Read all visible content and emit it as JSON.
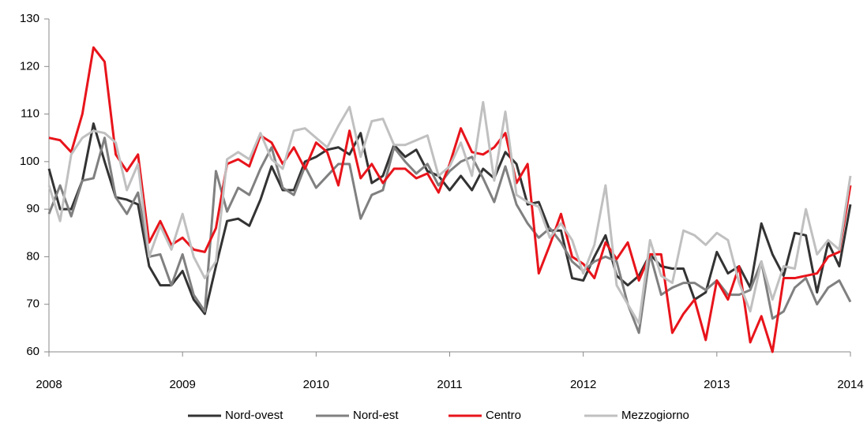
{
  "chart_data": {
    "type": "line",
    "categories": [
      "2008",
      null,
      null,
      null,
      null,
      null,
      null,
      null,
      null,
      null,
      null,
      null,
      "2009",
      null,
      null,
      null,
      null,
      null,
      null,
      null,
      null,
      null,
      null,
      null,
      "2010",
      null,
      null,
      null,
      null,
      null,
      null,
      null,
      null,
      null,
      null,
      null,
      "2011",
      null,
      null,
      null,
      null,
      null,
      null,
      null,
      null,
      null,
      null,
      null,
      "2012",
      null,
      null,
      null,
      null,
      null,
      null,
      null,
      null,
      null,
      null,
      null,
      "2013",
      null,
      null,
      null,
      null,
      null,
      null,
      null,
      null,
      null,
      null,
      null,
      "2014"
    ],
    "series": [
      {
        "name": "Nord-ovest",
        "color": "#333333",
        "values": [
          98.5,
          90,
          90,
          96,
          108,
          100,
          92.5,
          92,
          91,
          78,
          74,
          74,
          77,
          71,
          68,
          78,
          87.5,
          88,
          86.5,
          92,
          99,
          94,
          94,
          100,
          101,
          102.5,
          103,
          101.5,
          106,
          95.5,
          97,
          103.5,
          101,
          102.5,
          98,
          97,
          94,
          97,
          94,
          98.5,
          96.5,
          102,
          99.5,
          91,
          91.5,
          85.5,
          85.5,
          75.5,
          75,
          80,
          84.5,
          76,
          74,
          76,
          80.5,
          78,
          77.5,
          77.5,
          71,
          72.5,
          81,
          76.5,
          78,
          73.5,
          87,
          80.5,
          76,
          85,
          84.5,
          72.5,
          83,
          78,
          91
        ]
      },
      {
        "name": "Nord-est",
        "color": "#808080",
        "values": [
          89,
          95,
          88.5,
          96,
          96.5,
          105,
          92.5,
          89,
          93.5,
          80,
          80.5,
          74,
          80.5,
          72,
          68.5,
          98,
          89.5,
          94.5,
          93,
          98.5,
          103,
          94.5,
          93,
          99,
          94.5,
          97,
          99.5,
          99.5,
          88,
          93,
          94,
          103,
          100,
          97.5,
          99.5,
          95,
          98,
          100,
          101,
          96.5,
          91.5,
          99,
          91,
          87,
          84,
          86,
          83,
          79,
          77,
          79,
          80,
          79,
          70,
          64,
          80.5,
          72,
          73.5,
          74.5,
          74.5,
          73,
          75,
          72,
          72,
          73,
          79,
          67,
          68.5,
          73.5,
          75.5,
          70,
          73.5,
          75,
          70.5
        ]
      },
      {
        "name": "Centro",
        "color": "#e8141b",
        "values": [
          105,
          104.5,
          102,
          110,
          124,
          121,
          101.5,
          98,
          101.5,
          83,
          87.5,
          82.5,
          84,
          81.5,
          81,
          86,
          99.5,
          100.5,
          99,
          105.5,
          104,
          99.5,
          103,
          98.5,
          104,
          102,
          95,
          106.5,
          96.5,
          99.5,
          95.5,
          98.5,
          98.5,
          96.5,
          97.5,
          93.5,
          99.5,
          107,
          102,
          101.5,
          103,
          106,
          95.5,
          99.5,
          76.5,
          82.5,
          89,
          80,
          78.5,
          75.5,
          83,
          79.5,
          83,
          75,
          80.5,
          80.5,
          64,
          68,
          71,
          62.5,
          75,
          71,
          78,
          62,
          67.5,
          60,
          75.5,
          75.5,
          76,
          76.5,
          80,
          81,
          95
        ]
      },
      {
        "name": "Mezzogiorno",
        "color": "#c0c0c0",
        "values": [
          95,
          87.5,
          101.5,
          105,
          106.5,
          106,
          104,
          94,
          99.5,
          80,
          86.5,
          81.5,
          89,
          80,
          75.5,
          79,
          100.5,
          102,
          100.5,
          106,
          100.5,
          98.5,
          106.5,
          107,
          105,
          103,
          107.5,
          111.5,
          101,
          108.5,
          109,
          103.5,
          103.5,
          104.5,
          105.5,
          97,
          99,
          104,
          97,
          112.5,
          96,
          110.5,
          93,
          91.5,
          90.5,
          84,
          87,
          83.5,
          76.5,
          82.5,
          95,
          74,
          70,
          66,
          83.5,
          76,
          74.5,
          85.5,
          84.5,
          82.5,
          85,
          83.5,
          74.5,
          68.5,
          79,
          71,
          78,
          77.5,
          90,
          80.5,
          83.5,
          81.5,
          97
        ]
      }
    ],
    "ylim": [
      60,
      130
    ],
    "yticks": [
      60,
      70,
      80,
      90,
      100,
      110,
      120,
      130
    ],
    "grid": false,
    "legend": "bottom"
  }
}
